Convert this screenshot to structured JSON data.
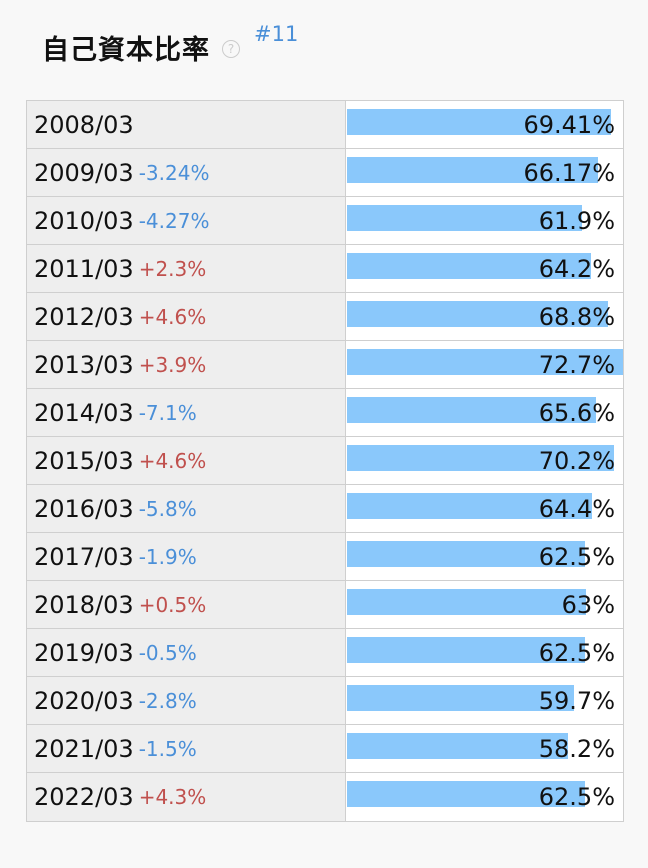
{
  "header": {
    "title": "自己資本比率",
    "help_icon": "?",
    "rank": "#11"
  },
  "chart_data": {
    "type": "bar",
    "orientation": "horizontal",
    "title": "自己資本比率",
    "unit": "%",
    "xlim": [
      0,
      100
    ],
    "bar_color": "#8ac8fb",
    "pos_color": "#c0504d",
    "neg_color": "#4a8fd8",
    "rows": [
      {
        "period": "2008/03",
        "change": "",
        "value": 69.41,
        "value_label": "69.41%"
      },
      {
        "period": "2009/03",
        "change": "-3.24%",
        "value": 66.17,
        "value_label": "66.17%"
      },
      {
        "period": "2010/03",
        "change": "-4.27%",
        "value": 61.9,
        "value_label": "61.9%"
      },
      {
        "period": "2011/03",
        "change": "+2.3%",
        "value": 64.2,
        "value_label": "64.2%"
      },
      {
        "period": "2012/03",
        "change": "+4.6%",
        "value": 68.8,
        "value_label": "68.8%"
      },
      {
        "period": "2013/03",
        "change": "+3.9%",
        "value": 72.7,
        "value_label": "72.7%"
      },
      {
        "period": "2014/03",
        "change": "-7.1%",
        "value": 65.6,
        "value_label": "65.6%"
      },
      {
        "period": "2015/03",
        "change": "+4.6%",
        "value": 70.2,
        "value_label": "70.2%"
      },
      {
        "period": "2016/03",
        "change": "-5.8%",
        "value": 64.4,
        "value_label": "64.4%"
      },
      {
        "period": "2017/03",
        "change": "-1.9%",
        "value": 62.5,
        "value_label": "62.5%"
      },
      {
        "period": "2018/03",
        "change": "+0.5%",
        "value": 63,
        "value_label": "63%"
      },
      {
        "period": "2019/03",
        "change": "-0.5%",
        "value": 62.5,
        "value_label": "62.5%"
      },
      {
        "period": "2020/03",
        "change": "-2.8%",
        "value": 59.7,
        "value_label": "59.7%"
      },
      {
        "period": "2021/03",
        "change": "-1.5%",
        "value": 58.2,
        "value_label": "58.2%"
      },
      {
        "period": "2022/03",
        "change": "+4.3%",
        "value": 62.5,
        "value_label": "62.5%"
      }
    ]
  }
}
